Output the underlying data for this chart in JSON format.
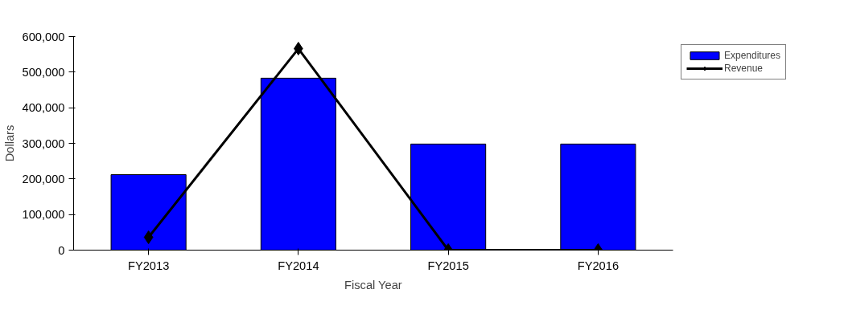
{
  "chart_data": {
    "type": "bar",
    "xlabel": "Fiscal Year",
    "ylabel": "Dollars",
    "categories": [
      "FY2013",
      "FY2014",
      "FY2015",
      "FY2016"
    ],
    "series": [
      {
        "name": "Expenditures",
        "color": "#0000ff",
        "values": [
          212000,
          483000,
          298000,
          298000
        ]
      },
      {
        "name": "Revenue",
        "type": "line",
        "color": "#000000",
        "marker": "diamond",
        "values": [
          36000,
          566000,
          0,
          0
        ]
      }
    ],
    "ylim": [
      0,
      600000
    ],
    "yticks": [
      {
        "value": 0,
        "label": "0"
      },
      {
        "value": 100000,
        "label": "100,000"
      },
      {
        "value": 200000,
        "label": "200,000"
      },
      {
        "value": 300000,
        "label": "300,000"
      },
      {
        "value": 400000,
        "label": "400,000"
      },
      {
        "value": 500000,
        "label": "500,000"
      },
      {
        "value": 600000,
        "label": "600,000"
      }
    ],
    "grid": false,
    "legend": "top right"
  }
}
